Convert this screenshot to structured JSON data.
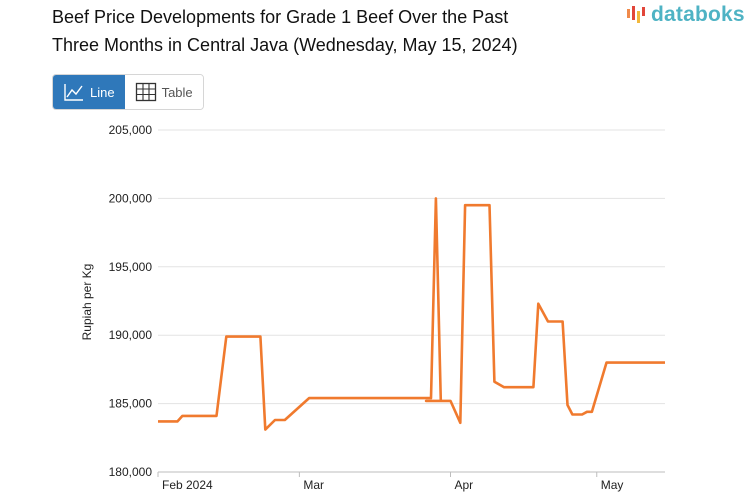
{
  "header": {
    "title_line1": "Beef Price Developments for Grade 1 Beef Over the Past",
    "title_line2": "Three Months in Central Java (Wednesday, May 15, 2024)",
    "logo_text": "databoks",
    "logo_color": "#4fb3c4",
    "logo_bar_colors": [
      "#f08a4b",
      "#e2463a",
      "#f2b83c",
      "#e2463a"
    ]
  },
  "toggle": {
    "line_label": "Line",
    "table_label": "Table",
    "active": "line",
    "active_color": "#2f78ba"
  },
  "chart_data": {
    "type": "line",
    "title": "Beef Price Developments for Grade 1 Beef Over the Past Three Months in Central Java (Wednesday, May 15, 2024)",
    "xlabel": "",
    "ylabel": "Rupiah per Kg",
    "ylim": [
      180000,
      205000
    ],
    "yticks": [
      180000,
      185000,
      190000,
      195000,
      200000,
      205000
    ],
    "ytick_labels": [
      "180,000",
      "185,000",
      "190,000",
      "195,000",
      "200,000",
      "205,000"
    ],
    "xlim": [
      "2024-02-01",
      "2024-05-15"
    ],
    "xticks": [
      {
        "date": "2024-02-01",
        "label": "Feb 2024"
      },
      {
        "date": "2024-03-01",
        "label": "Mar"
      },
      {
        "date": "2024-04-01",
        "label": "Apr"
      },
      {
        "date": "2024-05-01",
        "label": "May"
      }
    ],
    "grid": true,
    "line_color": "#f07a2e",
    "series": [
      {
        "points": [
          {
            "x": "2024-02-01",
            "y": 183700
          },
          {
            "x": "2024-02-05",
            "y": 183700
          },
          {
            "x": "2024-02-06",
            "y": 184100
          },
          {
            "x": "2024-02-13",
            "y": 184100
          },
          {
            "x": "2024-02-15",
            "y": 189900
          },
          {
            "x": "2024-02-22",
            "y": 189900
          },
          {
            "x": "2024-02-23",
            "y": 183100
          },
          {
            "x": "2024-02-25",
            "y": 183800
          },
          {
            "x": "2024-02-27",
            "y": 183800
          },
          {
            "x": "2024-03-03",
            "y": 185400
          },
          {
            "x": "2024-03-28",
            "y": 185400
          },
          {
            "x": "2024-03-29",
            "y": 200000
          },
          {
            "x": "2024-03-30",
            "y": 185200
          },
          {
            "x": "2024-03-27",
            "y": 185200
          },
          {
            "x": "2024-04-01",
            "y": 185200
          },
          {
            "x": "2024-04-03",
            "y": 183600
          },
          {
            "x": "2024-04-04",
            "y": 199500
          },
          {
            "x": "2024-04-09",
            "y": 199500
          },
          {
            "x": "2024-04-10",
            "y": 186600
          },
          {
            "x": "2024-04-12",
            "y": 186200
          },
          {
            "x": "2024-04-18",
            "y": 186200
          },
          {
            "x": "2024-04-19",
            "y": 192300
          },
          {
            "x": "2024-04-21",
            "y": 191000
          },
          {
            "x": "2024-04-24",
            "y": 191000
          },
          {
            "x": "2024-04-25",
            "y": 184900
          },
          {
            "x": "2024-04-26",
            "y": 184200
          },
          {
            "x": "2024-04-28",
            "y": 184200
          },
          {
            "x": "2024-04-29",
            "y": 184400
          },
          {
            "x": "2024-04-30",
            "y": 184400
          },
          {
            "x": "2024-05-03",
            "y": 188000
          },
          {
            "x": "2024-05-15",
            "y": 188000
          }
        ]
      }
    ]
  }
}
